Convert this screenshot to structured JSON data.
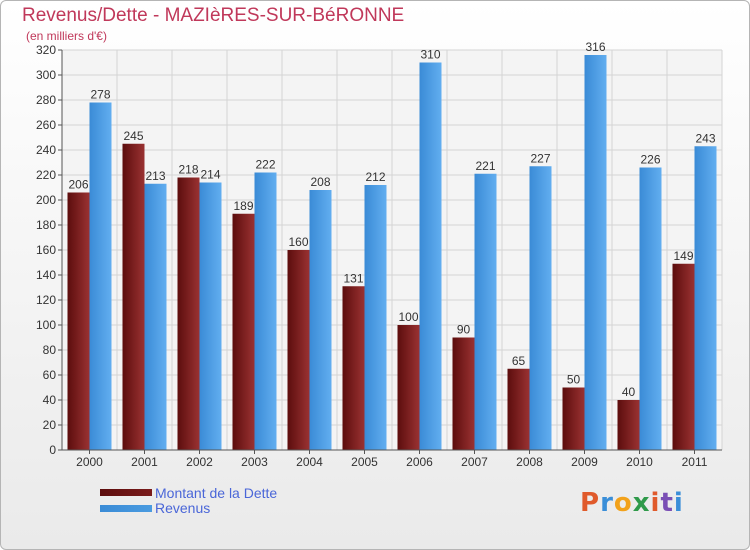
{
  "title": "Revenus/Dette - MAZIèRES-SUR-BéRONNE",
  "subtitle": "(en milliers d'€)",
  "colors": {
    "dette": "#7a1b1b",
    "revenus": "#4a9be0",
    "axis": "#555555",
    "grid": "#d4d4d4",
    "title": "#c0385a",
    "legend_text": "#4a66d8"
  },
  "chart_data": {
    "type": "bar",
    "title": "Revenus/Dette - MAZIèRES-SUR-BéRONNE",
    "ylabel": "(en milliers d'€)",
    "xlabel": "",
    "ylim": [
      0,
      320
    ],
    "ytick_step": 20,
    "grid": true,
    "categories": [
      "2000",
      "2001",
      "2002",
      "2003",
      "2004",
      "2005",
      "2006",
      "2007",
      "2008",
      "2009",
      "2010",
      "2011"
    ],
    "series": [
      {
        "name": "Montant de la Dette",
        "values": [
          206,
          245,
          218,
          189,
          160,
          131,
          100,
          90,
          65,
          50,
          40,
          149
        ]
      },
      {
        "name": "Revenus",
        "values": [
          278,
          213,
          214,
          222,
          208,
          212,
          310,
          221,
          227,
          316,
          226,
          243
        ]
      }
    ],
    "legend_position": "bottom-left"
  },
  "legend": {
    "items": [
      {
        "label": "Montant de la Dette"
      },
      {
        "label": "Revenus"
      }
    ]
  },
  "logo": {
    "text": "Proxiti",
    "letter_colors": [
      "#e05a2b",
      "#3a8ed8",
      "#f2a21b",
      "#2f9a4a",
      "#e05a2b",
      "#7a4fb5",
      "#3a8ed8"
    ]
  }
}
